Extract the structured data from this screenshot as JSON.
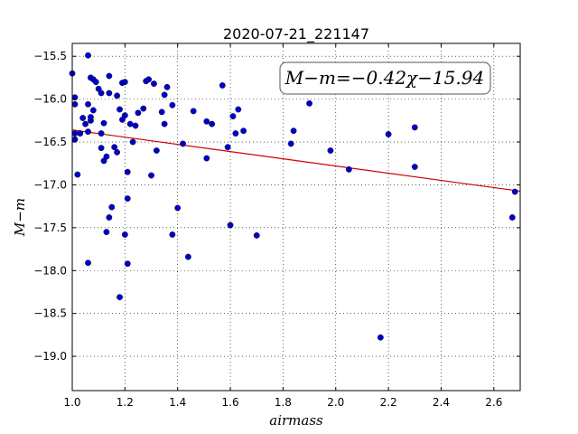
{
  "chart_data": {
    "type": "scatter",
    "title": "2020-07-21_221147",
    "xlabel": "airmass",
    "ylabel": "M−m",
    "xlim": [
      1.0,
      2.7
    ],
    "ylim": [
      -19.4,
      -15.35
    ],
    "y_inverted": true,
    "grid": true,
    "xticks": [
      1.0,
      1.2,
      1.4,
      1.6,
      1.8,
      2.0,
      2.2,
      2.4,
      2.6
    ],
    "xtick_labels": [
      "1.0",
      "1.2",
      "1.4",
      "1.6",
      "1.8",
      "2.0",
      "2.2",
      "2.4",
      "2.6"
    ],
    "yticks": [
      -15.5,
      -16.0,
      -16.5,
      -17.0,
      -17.5,
      -18.0,
      -18.5,
      -19.0
    ],
    "ytick_labels": [
      "−15.5",
      "−16.0",
      "−16.5",
      "−17.0",
      "−17.5",
      "−18.0",
      "−18.5",
      "−19.0"
    ],
    "annotation": "M−m=−0.42χ−15.94",
    "fit": {
      "slope": -0.42,
      "intercept": -15.94,
      "color": "#cc0000"
    },
    "marker_color": "#0000cc",
    "points": [
      [
        1.0,
        -15.7
      ],
      [
        1.01,
        -15.98
      ],
      [
        1.01,
        -16.06
      ],
      [
        1.01,
        -16.47
      ],
      [
        1.01,
        -16.4
      ],
      [
        1.02,
        -16.88
      ],
      [
        1.03,
        -16.4
      ],
      [
        1.04,
        -16.22
      ],
      [
        1.05,
        -16.29
      ],
      [
        1.06,
        -15.49
      ],
      [
        1.06,
        -16.06
      ],
      [
        1.06,
        -16.38
      ],
      [
        1.07,
        -16.25
      ],
      [
        1.07,
        -16.21
      ],
      [
        1.08,
        -16.13
      ],
      [
        1.07,
        -15.75
      ],
      [
        1.08,
        -15.77
      ],
      [
        1.09,
        -15.8
      ],
      [
        1.06,
        -17.91
      ],
      [
        1.1,
        -15.88
      ],
      [
        1.11,
        -15.93
      ],
      [
        1.11,
        -16.57
      ],
      [
        1.11,
        -16.4
      ],
      [
        1.12,
        -16.28
      ],
      [
        1.12,
        -16.72
      ],
      [
        1.13,
        -16.67
      ],
      [
        1.13,
        -17.55
      ],
      [
        1.14,
        -15.73
      ],
      [
        1.14,
        -15.93
      ],
      [
        1.14,
        -17.38
      ],
      [
        1.15,
        -17.26
      ],
      [
        1.16,
        -16.56
      ],
      [
        1.17,
        -15.96
      ],
      [
        1.17,
        -16.62
      ],
      [
        1.18,
        -18.31
      ],
      [
        1.18,
        -16.12
      ],
      [
        1.19,
        -15.81
      ],
      [
        1.19,
        -16.24
      ],
      [
        1.2,
        -15.8
      ],
      [
        1.2,
        -16.19
      ],
      [
        1.2,
        -17.58
      ],
      [
        1.21,
        -16.85
      ],
      [
        1.21,
        -17.16
      ],
      [
        1.21,
        -17.92
      ],
      [
        1.22,
        -16.29
      ],
      [
        1.23,
        -16.5
      ],
      [
        1.24,
        -16.31
      ],
      [
        1.25,
        -16.16
      ],
      [
        1.27,
        -16.11
      ],
      [
        1.28,
        -15.79
      ],
      [
        1.29,
        -15.77
      ],
      [
        1.3,
        -16.89
      ],
      [
        1.31,
        -15.82
      ],
      [
        1.32,
        -16.6
      ],
      [
        1.34,
        -16.15
      ],
      [
        1.35,
        -16.29
      ],
      [
        1.35,
        -15.95
      ],
      [
        1.36,
        -15.86
      ],
      [
        1.38,
        -16.07
      ],
      [
        1.38,
        -17.58
      ],
      [
        1.4,
        -17.27
      ],
      [
        1.42,
        -16.52
      ],
      [
        1.44,
        -17.84
      ],
      [
        1.46,
        -16.14
      ],
      [
        1.51,
        -16.26
      ],
      [
        1.51,
        -16.69
      ],
      [
        1.53,
        -16.29
      ],
      [
        1.57,
        -15.84
      ],
      [
        1.59,
        -16.56
      ],
      [
        1.6,
        -17.47
      ],
      [
        1.61,
        -16.2
      ],
      [
        1.62,
        -16.4
      ],
      [
        1.63,
        -16.12
      ],
      [
        1.65,
        -16.37
      ],
      [
        1.7,
        -17.59
      ],
      [
        1.83,
        -16.52
      ],
      [
        1.84,
        -16.37
      ],
      [
        1.9,
        -16.05
      ],
      [
        1.98,
        -16.6
      ],
      [
        2.05,
        -16.82
      ],
      [
        2.17,
        -18.78
      ],
      [
        2.2,
        -16.41
      ],
      [
        2.3,
        -16.33
      ],
      [
        2.3,
        -16.79
      ],
      [
        2.67,
        -17.38
      ],
      [
        2.68,
        -17.08
      ]
    ]
  }
}
